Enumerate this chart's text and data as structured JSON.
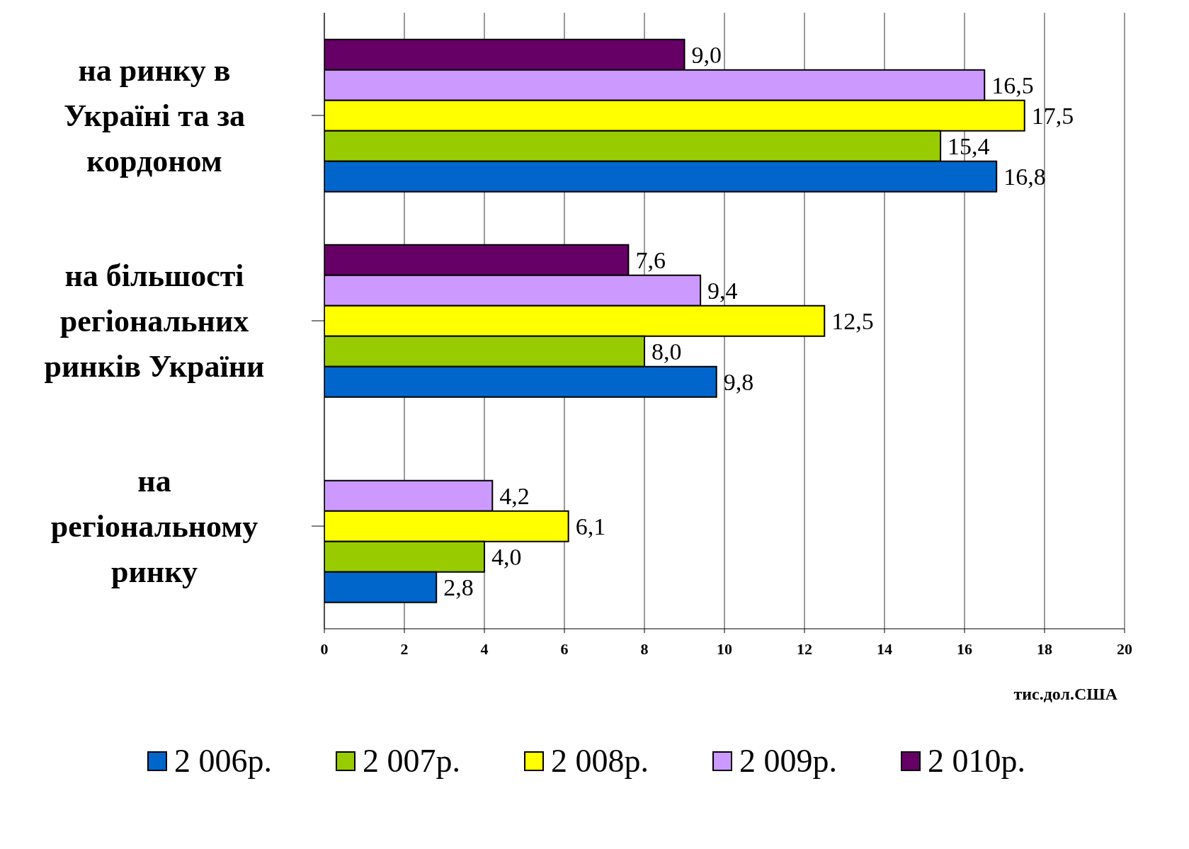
{
  "chart_data": {
    "type": "bar",
    "orientation": "horizontal",
    "categories": [
      "на ринку в Україні та за кордоном",
      "на більшості регіональних ринків України",
      "на регіональному ринку"
    ],
    "series": [
      {
        "name": "2 006р.",
        "color": "#0066cc",
        "values": [
          16.8,
          9.8,
          2.8
        ],
        "value_labels": [
          "16,8",
          "9,8",
          "2,8"
        ]
      },
      {
        "name": "2 007р.",
        "color": "#99cc00",
        "values": [
          15.4,
          8.0,
          4.0
        ],
        "value_labels": [
          "15,4",
          "8,0",
          "4,0"
        ]
      },
      {
        "name": "2 008р.",
        "color": "#ffff00",
        "values": [
          17.5,
          12.5,
          6.1
        ],
        "value_labels": [
          "17,5",
          "12,5",
          "6,1"
        ]
      },
      {
        "name": "2 009р.",
        "color": "#cc99ff",
        "values": [
          16.5,
          9.4,
          4.2
        ],
        "value_labels": [
          "16,5",
          "9,4",
          "4,2"
        ]
      },
      {
        "name": "2 010р.",
        "color": "#660066",
        "values": [
          9.0,
          7.6,
          null
        ],
        "value_labels": [
          "9,0",
          "7,6",
          null
        ]
      }
    ],
    "xlabel": "тис.дол.США",
    "xlim": [
      0,
      20
    ],
    "xticks": [
      0,
      2,
      4,
      6,
      8,
      10,
      12,
      14,
      16,
      18,
      20
    ],
    "grid": "x",
    "legend": "bottom"
  }
}
